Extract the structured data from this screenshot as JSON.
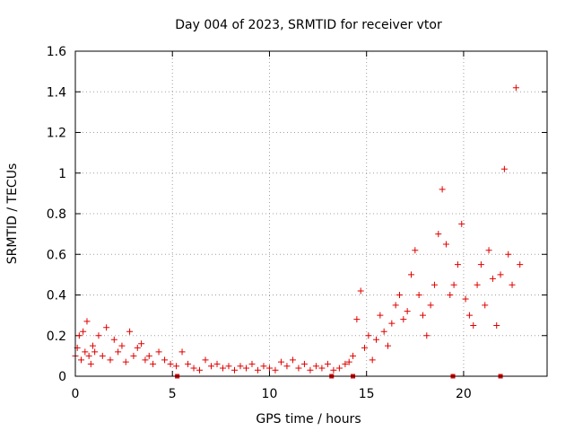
{
  "chart_data": {
    "type": "scatter",
    "title": "Day 004 of 2023, SRMTID for receiver vtor",
    "xlabel": "GPS time / hours",
    "ylabel": "SRMTID / TECUs",
    "xlim": [
      0,
      24.3
    ],
    "ylim": [
      0,
      1.6
    ],
    "x_ticks": [
      0,
      5,
      10,
      15,
      20
    ],
    "x_tick_labels": [
      "0",
      "5",
      "10",
      "15",
      "20"
    ],
    "y_ticks": [
      0,
      0.2,
      0.4,
      0.6,
      0.8,
      1.0,
      1.2,
      1.4,
      1.6
    ],
    "y_tick_labels": [
      "0",
      "0.2",
      "0.4",
      "0.6",
      "0.8",
      "1",
      "1.2",
      "1.4",
      "1.6"
    ],
    "grid": true,
    "marker": "+",
    "color": "#e00000",
    "data_gaps_at_zero": [
      5.25,
      13.2,
      14.3,
      19.45,
      21.9
    ],
    "series": [
      {
        "name": "SRMTID",
        "x": [
          0.0,
          0.1,
          0.2,
          0.3,
          0.4,
          0.5,
          0.6,
          0.7,
          0.8,
          0.9,
          1.0,
          1.2,
          1.4,
          1.6,
          1.8,
          2.0,
          2.2,
          2.4,
          2.6,
          2.8,
          3.0,
          3.2,
          3.4,
          3.6,
          3.8,
          4.0,
          4.3,
          4.6,
          4.9,
          5.2,
          5.5,
          5.8,
          6.1,
          6.4,
          6.7,
          7.0,
          7.3,
          7.6,
          7.9,
          8.2,
          8.5,
          8.8,
          9.1,
          9.4,
          9.7,
          10.0,
          10.3,
          10.6,
          10.9,
          11.2,
          11.5,
          11.8,
          12.1,
          12.4,
          12.7,
          13.0,
          13.3,
          13.6,
          13.9,
          14.1,
          14.3,
          14.5,
          14.7,
          14.9,
          15.1,
          15.3,
          15.5,
          15.7,
          15.9,
          16.1,
          16.3,
          16.5,
          16.7,
          16.9,
          17.1,
          17.3,
          17.5,
          17.7,
          17.9,
          18.1,
          18.3,
          18.5,
          18.7,
          18.9,
          19.1,
          19.3,
          19.5,
          19.7,
          19.9,
          20.1,
          20.3,
          20.5,
          20.7,
          20.9,
          21.1,
          21.3,
          21.5,
          21.7,
          21.9,
          22.1,
          22.3,
          22.5,
          22.7,
          22.9
        ],
        "values": [
          0.1,
          0.14,
          0.2,
          0.08,
          0.22,
          0.12,
          0.27,
          0.1,
          0.06,
          0.15,
          0.12,
          0.2,
          0.1,
          0.24,
          0.08,
          0.18,
          0.12,
          0.15,
          0.07,
          0.22,
          0.1,
          0.14,
          0.16,
          0.08,
          0.1,
          0.06,
          0.12,
          0.08,
          0.06,
          0.05,
          0.12,
          0.06,
          0.04,
          0.03,
          0.08,
          0.05,
          0.06,
          0.04,
          0.05,
          0.03,
          0.05,
          0.04,
          0.06,
          0.03,
          0.05,
          0.04,
          0.03,
          0.07,
          0.05,
          0.08,
          0.04,
          0.06,
          0.03,
          0.05,
          0.04,
          0.06,
          0.03,
          0.04,
          0.06,
          0.07,
          0.1,
          0.28,
          0.42,
          0.14,
          0.2,
          0.08,
          0.18,
          0.3,
          0.22,
          0.15,
          0.26,
          0.35,
          0.4,
          0.28,
          0.32,
          0.5,
          0.62,
          0.4,
          0.3,
          0.2,
          0.35,
          0.45,
          0.7,
          0.92,
          0.65,
          0.4,
          0.45,
          0.55,
          0.75,
          0.38,
          0.3,
          0.25,
          0.45,
          0.55,
          0.35,
          0.62,
          0.48,
          0.25,
          0.5,
          1.02,
          0.6,
          0.45,
          1.42,
          0.55
        ]
      }
    ]
  }
}
